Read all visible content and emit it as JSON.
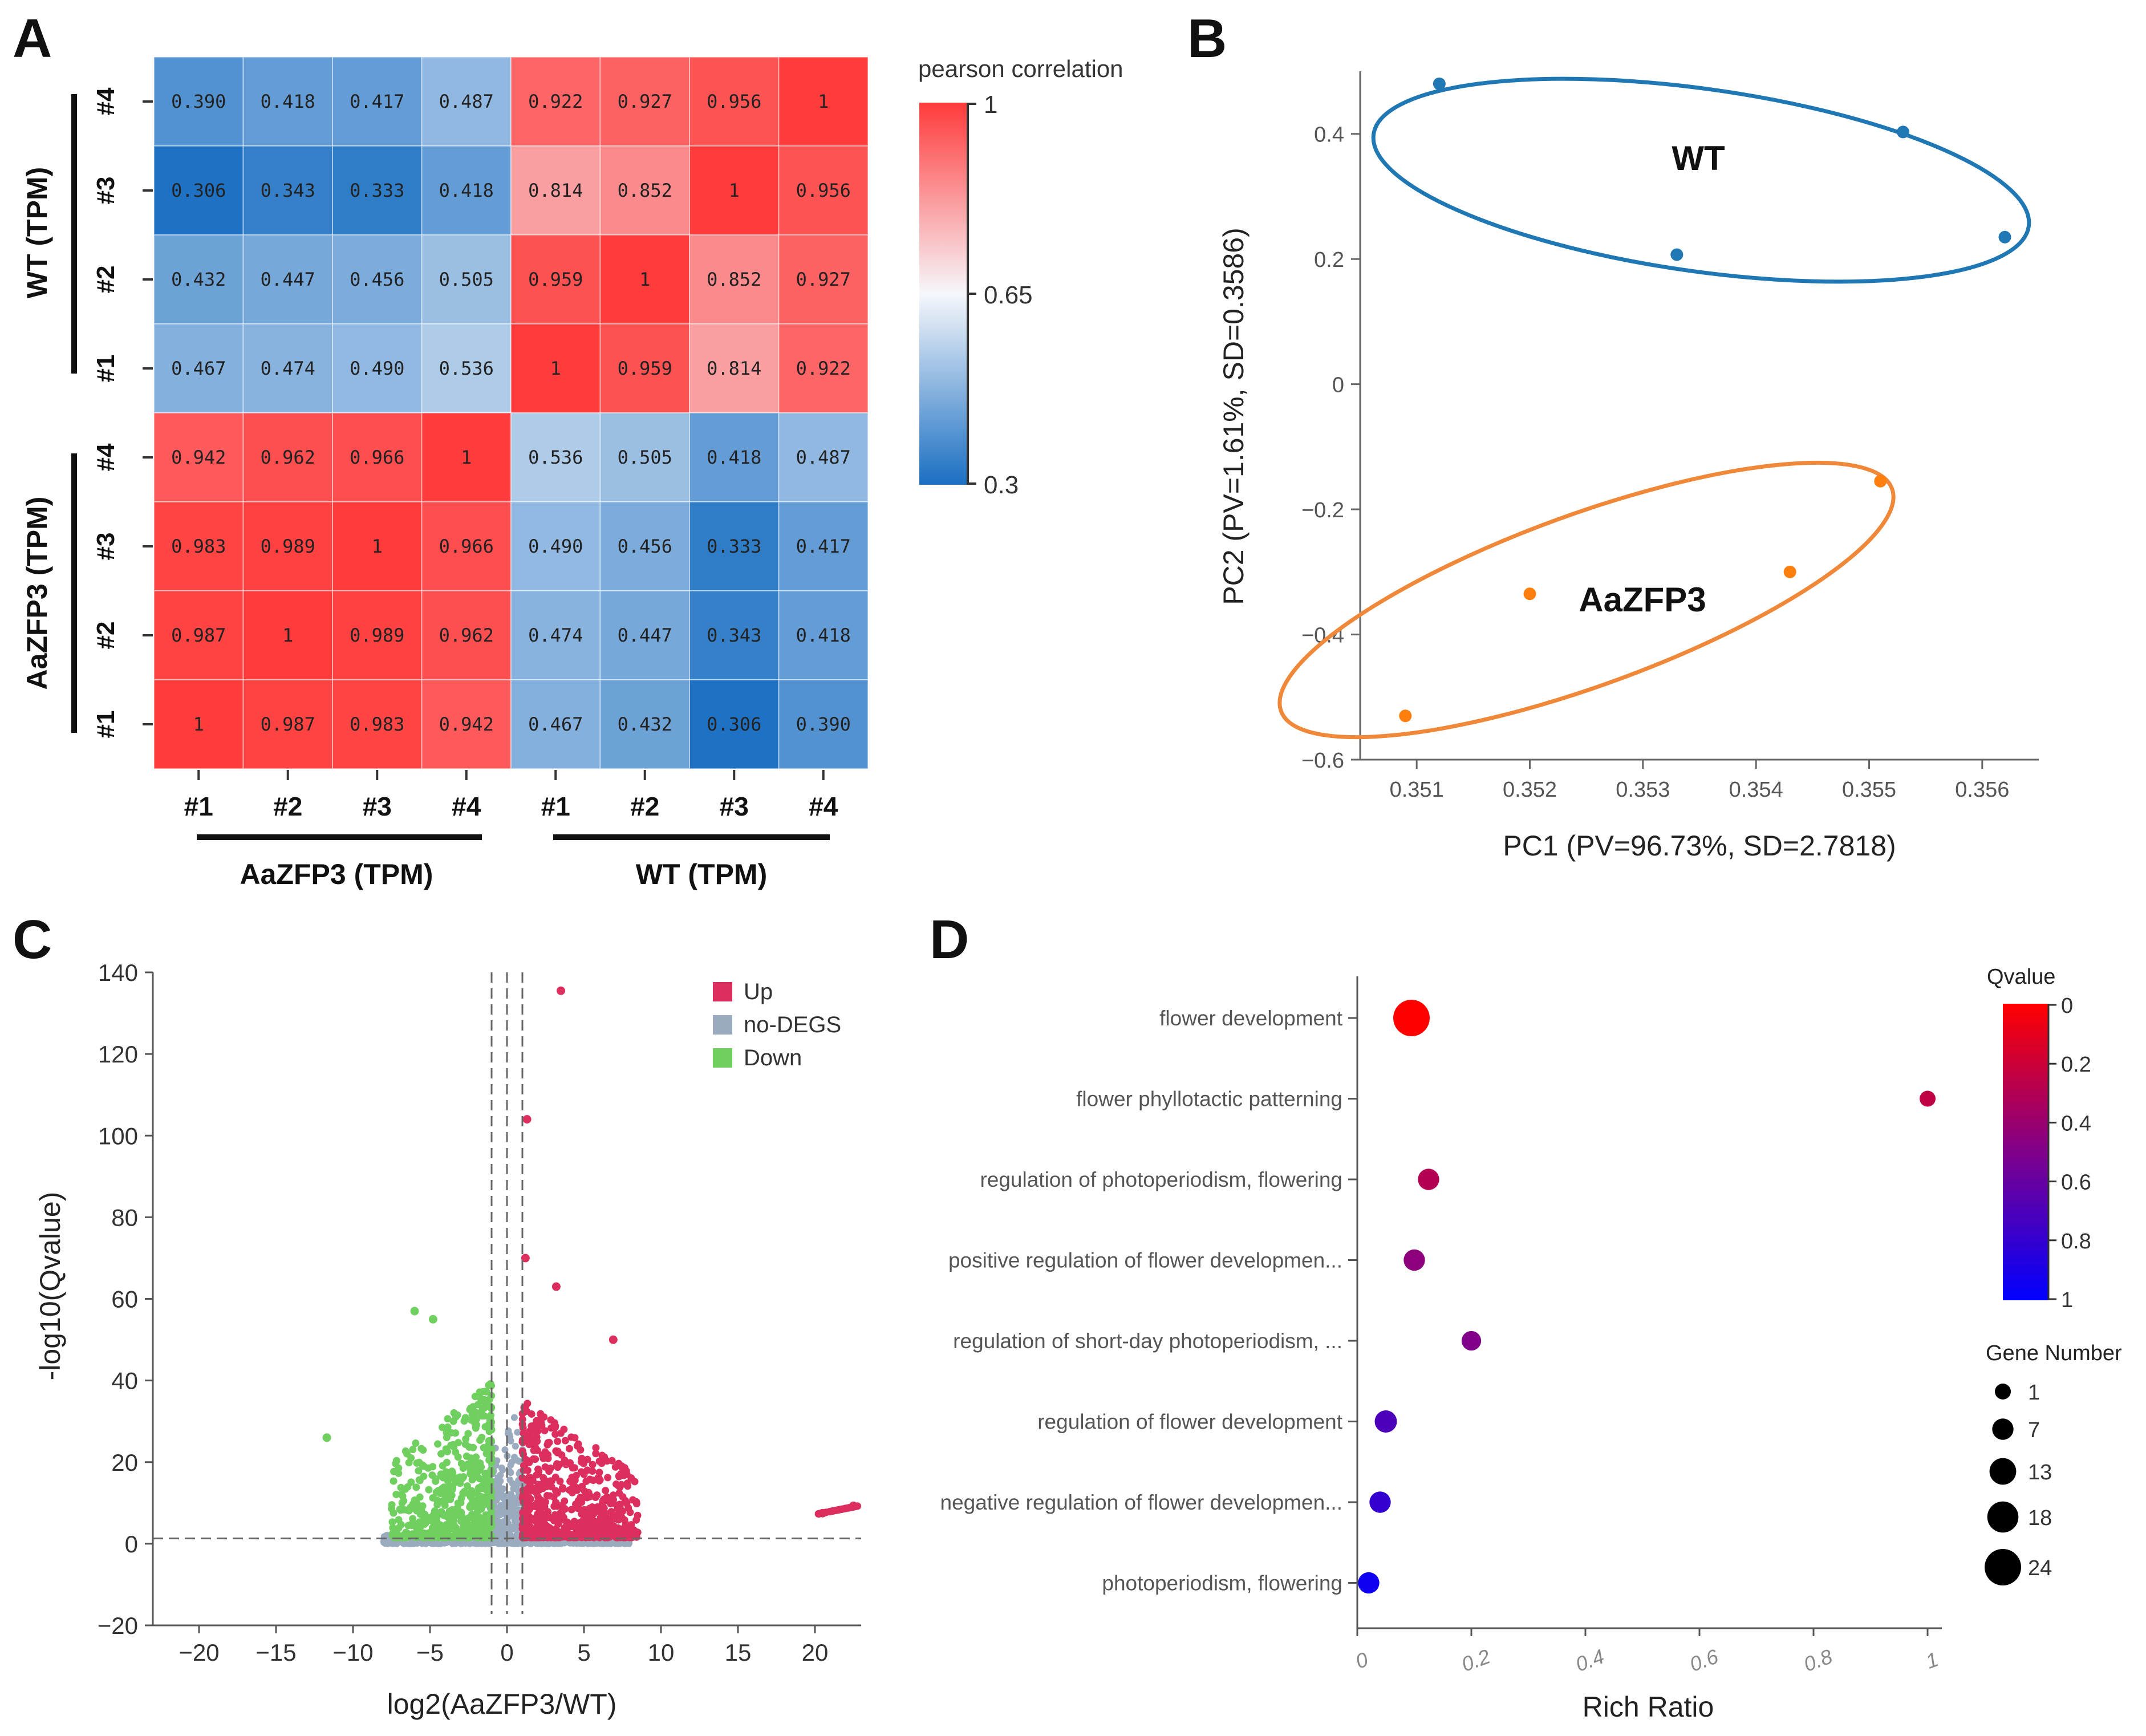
{
  "panel_labels": [
    "A",
    "B",
    "C",
    "D"
  ],
  "chart_data": [
    {
      "id": "A",
      "type": "heatmap",
      "title": "pearson correlation",
      "columns": [
        "#1",
        "#2",
        "#3",
        "#4",
        "#1",
        "#2",
        "#3",
        "#4"
      ],
      "rows": [
        "#4",
        "#3",
        "#2",
        "#1",
        "#4",
        "#3",
        "#2",
        "#1"
      ],
      "column_groups": [
        {
          "label": "AaZFP3 (TPM)"
        },
        {
          "label": "WT (TPM)"
        }
      ],
      "row_groups": [
        {
          "label": "WT (TPM)"
        },
        {
          "label": "AaZFP3 (TPM)"
        }
      ],
      "values": [
        [
          "0.390",
          "0.418",
          "0.417",
          "0.487",
          "0.922",
          "0.927",
          "0.956",
          "1"
        ],
        [
          "0.306",
          "0.343",
          "0.333",
          "0.418",
          "0.814",
          "0.852",
          "1",
          "0.956"
        ],
        [
          "0.432",
          "0.447",
          "0.456",
          "0.505",
          "0.959",
          "1",
          "0.852",
          "0.927"
        ],
        [
          "0.467",
          "0.474",
          "0.490",
          "0.536",
          "1",
          "0.959",
          "0.814",
          "0.922"
        ],
        [
          "0.942",
          "0.962",
          "0.966",
          "1",
          "0.536",
          "0.505",
          "0.418",
          "0.487"
        ],
        [
          "0.983",
          "0.989",
          "1",
          "0.966",
          "0.490",
          "0.456",
          "0.333",
          "0.417"
        ],
        [
          "0.987",
          "1",
          "0.989",
          "0.962",
          "0.474",
          "0.447",
          "0.343",
          "0.418"
        ],
        [
          "1",
          "0.987",
          "0.983",
          "0.942",
          "0.467",
          "0.432",
          "0.306",
          "0.390"
        ]
      ],
      "colorbar": {
        "ticks": [
          "1",
          "0.65",
          "0.3"
        ],
        "min": 0.3,
        "mid": 0.65,
        "max": 1,
        "colors": [
          "#1a6fc2",
          "#f6f7fb",
          "#ff3b3b"
        ]
      }
    },
    {
      "id": "B",
      "type": "scatter",
      "xlabel": "PC1 (PV=96.73%, SD=2.7818)",
      "ylabel": "PC2 (PV=1.61%, SD=0.3586)",
      "xlim": [
        0.3505,
        0.3565
      ],
      "ylim": [
        -0.6,
        0.5
      ],
      "xticks": [
        "0.351",
        "0.352",
        "0.353",
        "0.354",
        "0.355",
        "0.356"
      ],
      "yticks": [
        "0.4",
        "0.2",
        "0",
        "−0.2",
        "−0.4",
        "−0.6"
      ],
      "series": [
        {
          "name": "WT",
          "color": "#1f77b4",
          "points": [
            [
              0.3512,
              0.48
            ],
            [
              0.3533,
              0.207
            ],
            [
              0.3553,
              0.403
            ],
            [
              0.3562,
              0.235
            ]
          ]
        },
        {
          "name": "AaZFP3",
          "color": "#ff7f0e",
          "points": [
            [
              0.3509,
              -0.53
            ],
            [
              0.352,
              -0.335
            ],
            [
              0.3543,
              -0.3
            ],
            [
              0.3551,
              -0.155
            ]
          ]
        }
      ]
    },
    {
      "id": "C",
      "type": "scatter",
      "xlabel": "log2(AaZFP3/WT)",
      "ylabel": "-log10(Qvalue)",
      "xlim": [
        -23,
        23
      ],
      "ylim": [
        -20,
        140
      ],
      "xticks": [
        "−20",
        "−15",
        "−10",
        "−5",
        "0",
        "5",
        "10",
        "15",
        "20"
      ],
      "yticks": [
        "140",
        "120",
        "100",
        "80",
        "60",
        "40",
        "20",
        "0",
        "−20"
      ],
      "thresholds": {
        "x": [
          -1,
          0,
          1
        ],
        "y": 1.3
      },
      "legend": [
        {
          "label": "Up",
          "color": "#dc2f5d"
        },
        {
          "label": "no-DEGS",
          "color": "#9aabbf"
        },
        {
          "label": "Down",
          "color": "#6fcf5f"
        }
      ],
      "highlighted_points": [
        [
          3.5,
          135.5
        ],
        [
          1.3,
          104
        ],
        [
          1.2,
          70
        ],
        [
          3.2,
          63
        ],
        [
          6.9,
          50
        ],
        [
          -6,
          57
        ],
        [
          -4.8,
          55
        ],
        [
          -11.7,
          26
        ],
        [
          20.5,
          7.5
        ],
        [
          22.5,
          9.3
        ]
      ]
    },
    {
      "id": "D",
      "type": "scatter",
      "xlabel": "Rich Ratio",
      "xlim": [
        0,
        1
      ],
      "xticks": [
        "0",
        "0.2",
        "0.4",
        "0.6",
        "0.8",
        "1"
      ],
      "terms": [
        "flower development",
        "flower phyllotactic patterning",
        "regulation of photoperiodism, flowering",
        "positive regulation of flower developmen...",
        "regulation of short-day photoperiodism, ...",
        "regulation of flower development",
        "negative regulation of flower developmen...",
        "photoperiodism, flowering"
      ],
      "rich_ratio": [
        0.095,
        1.0,
        0.125,
        0.1,
        0.2,
        0.05,
        0.04,
        0.02
      ],
      "qvalue": [
        0.0,
        0.25,
        0.3,
        0.45,
        0.5,
        0.7,
        0.8,
        0.95
      ],
      "gene_number": [
        24,
        1,
        7,
        7,
        5,
        8,
        7,
        7
      ],
      "qvalue_legend": {
        "title": "Qvalue",
        "ticks": [
          "0",
          "0.2",
          "0.4",
          "0.6",
          "0.8",
          "1"
        ]
      },
      "size_legend": {
        "title": "Gene Number",
        "items": [
          "1",
          "7",
          "13",
          "18",
          "24"
        ]
      }
    }
  ]
}
